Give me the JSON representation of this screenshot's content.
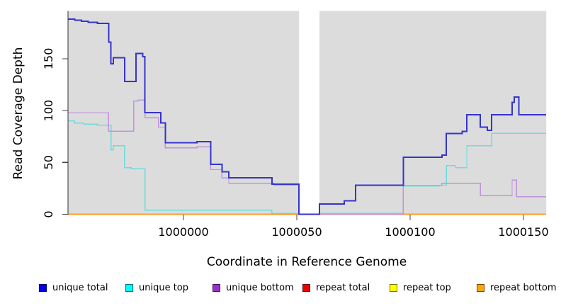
{
  "chart_data": {
    "type": "line",
    "subtype": "step-after",
    "title": "",
    "xlabel": "Coordinate in Reference Genome",
    "ylabel": "Read Coverage Depth",
    "xlim": [
      999949,
      1000160
    ],
    "ylim": [
      0,
      196
    ],
    "x_ticks": [
      1000000,
      1000050,
      1000100,
      1000150
    ],
    "x_tick_labels": [
      "1000000",
      "1000050",
      "1000100",
      "1000150"
    ],
    "y_ticks": [
      0,
      50,
      100,
      150
    ],
    "y_tick_labels": [
      "0",
      "50",
      "100",
      "150"
    ],
    "grid": false,
    "legend_position": "bottom",
    "plot_bg_color": "#DCDCDC",
    "gap_region": {
      "from": 1000051,
      "to": 1000060,
      "color": "#FFFFFF"
    },
    "series": [
      {
        "name": "unique total",
        "line_color": "#3434CE",
        "legend_color": "#0000EE",
        "line_width": 2,
        "points": [
          [
            999949,
            188
          ],
          [
            999952,
            187
          ],
          [
            999955,
            186
          ],
          [
            999958,
            185
          ],
          [
            999962,
            184
          ],
          [
            999967,
            166
          ],
          [
            999968,
            145
          ],
          [
            999969,
            151
          ],
          [
            999974,
            128
          ],
          [
            999979,
            155
          ],
          [
            999982,
            152
          ],
          [
            999983,
            98
          ],
          [
            999990,
            88
          ],
          [
            999992,
            69
          ],
          [
            1000006,
            70
          ],
          [
            1000012,
            48
          ],
          [
            1000017,
            41
          ],
          [
            1000020,
            35
          ],
          [
            1000039,
            29
          ],
          [
            1000051,
            0
          ],
          [
            1000060,
            10
          ],
          [
            1000071,
            13
          ],
          [
            1000076,
            28
          ],
          [
            1000097,
            55
          ],
          [
            1000114,
            57
          ],
          [
            1000116,
            78
          ],
          [
            1000123,
            80
          ],
          [
            1000125,
            96
          ],
          [
            1000131,
            84
          ],
          [
            1000134,
            81
          ],
          [
            1000136,
            96
          ],
          [
            1000145,
            108
          ],
          [
            1000146,
            113
          ],
          [
            1000148,
            96
          ]
        ]
      },
      {
        "name": "unique top",
        "line_color": "#6BDCDC",
        "legend_color": "#00FFFF",
        "line_width": 1.4,
        "points": [
          [
            999949,
            90
          ],
          [
            999952,
            88
          ],
          [
            999956,
            87
          ],
          [
            999962,
            86
          ],
          [
            999968,
            62
          ],
          [
            999969,
            66
          ],
          [
            999974,
            45
          ],
          [
            999977,
            44
          ],
          [
            999983,
            4
          ],
          [
            1000039,
            1
          ],
          [
            1000097,
            27
          ],
          [
            1000113,
            28
          ],
          [
            1000116,
            47
          ],
          [
            1000120,
            45
          ],
          [
            1000125,
            66
          ],
          [
            1000136,
            78
          ]
        ]
      },
      {
        "name": "unique bottom",
        "line_color": "#C092DD",
        "legend_color": "#9932CC",
        "line_width": 1.4,
        "points": [
          [
            999949,
            98
          ],
          [
            999967,
            80
          ],
          [
            999978,
            109
          ],
          [
            999980,
            110
          ],
          [
            999983,
            93
          ],
          [
            999989,
            84
          ],
          [
            999992,
            64
          ],
          [
            1000006,
            65
          ],
          [
            1000012,
            43
          ],
          [
            1000017,
            35
          ],
          [
            1000020,
            30
          ],
          [
            1000040,
            28
          ],
          [
            1000051,
            0
          ],
          [
            1000097,
            28
          ],
          [
            1000114,
            30
          ],
          [
            1000131,
            18
          ],
          [
            1000145,
            33
          ],
          [
            1000147,
            17
          ]
        ]
      },
      {
        "name": "repeat total",
        "line_color": "#CC2222",
        "legend_color": "#EE0000",
        "line_width": 1.4,
        "points": [
          [
            999949,
            0
          ]
        ]
      },
      {
        "name": "repeat top",
        "line_color": "#E8E800",
        "legend_color": "#FFFF00",
        "line_width": 1.4,
        "points": [
          [
            999949,
            0
          ]
        ]
      },
      {
        "name": "repeat bottom",
        "line_color": "#FF9E2C",
        "legend_color": "#FFA500",
        "line_width": 2,
        "points": [
          [
            999949,
            0
          ]
        ]
      }
    ]
  }
}
